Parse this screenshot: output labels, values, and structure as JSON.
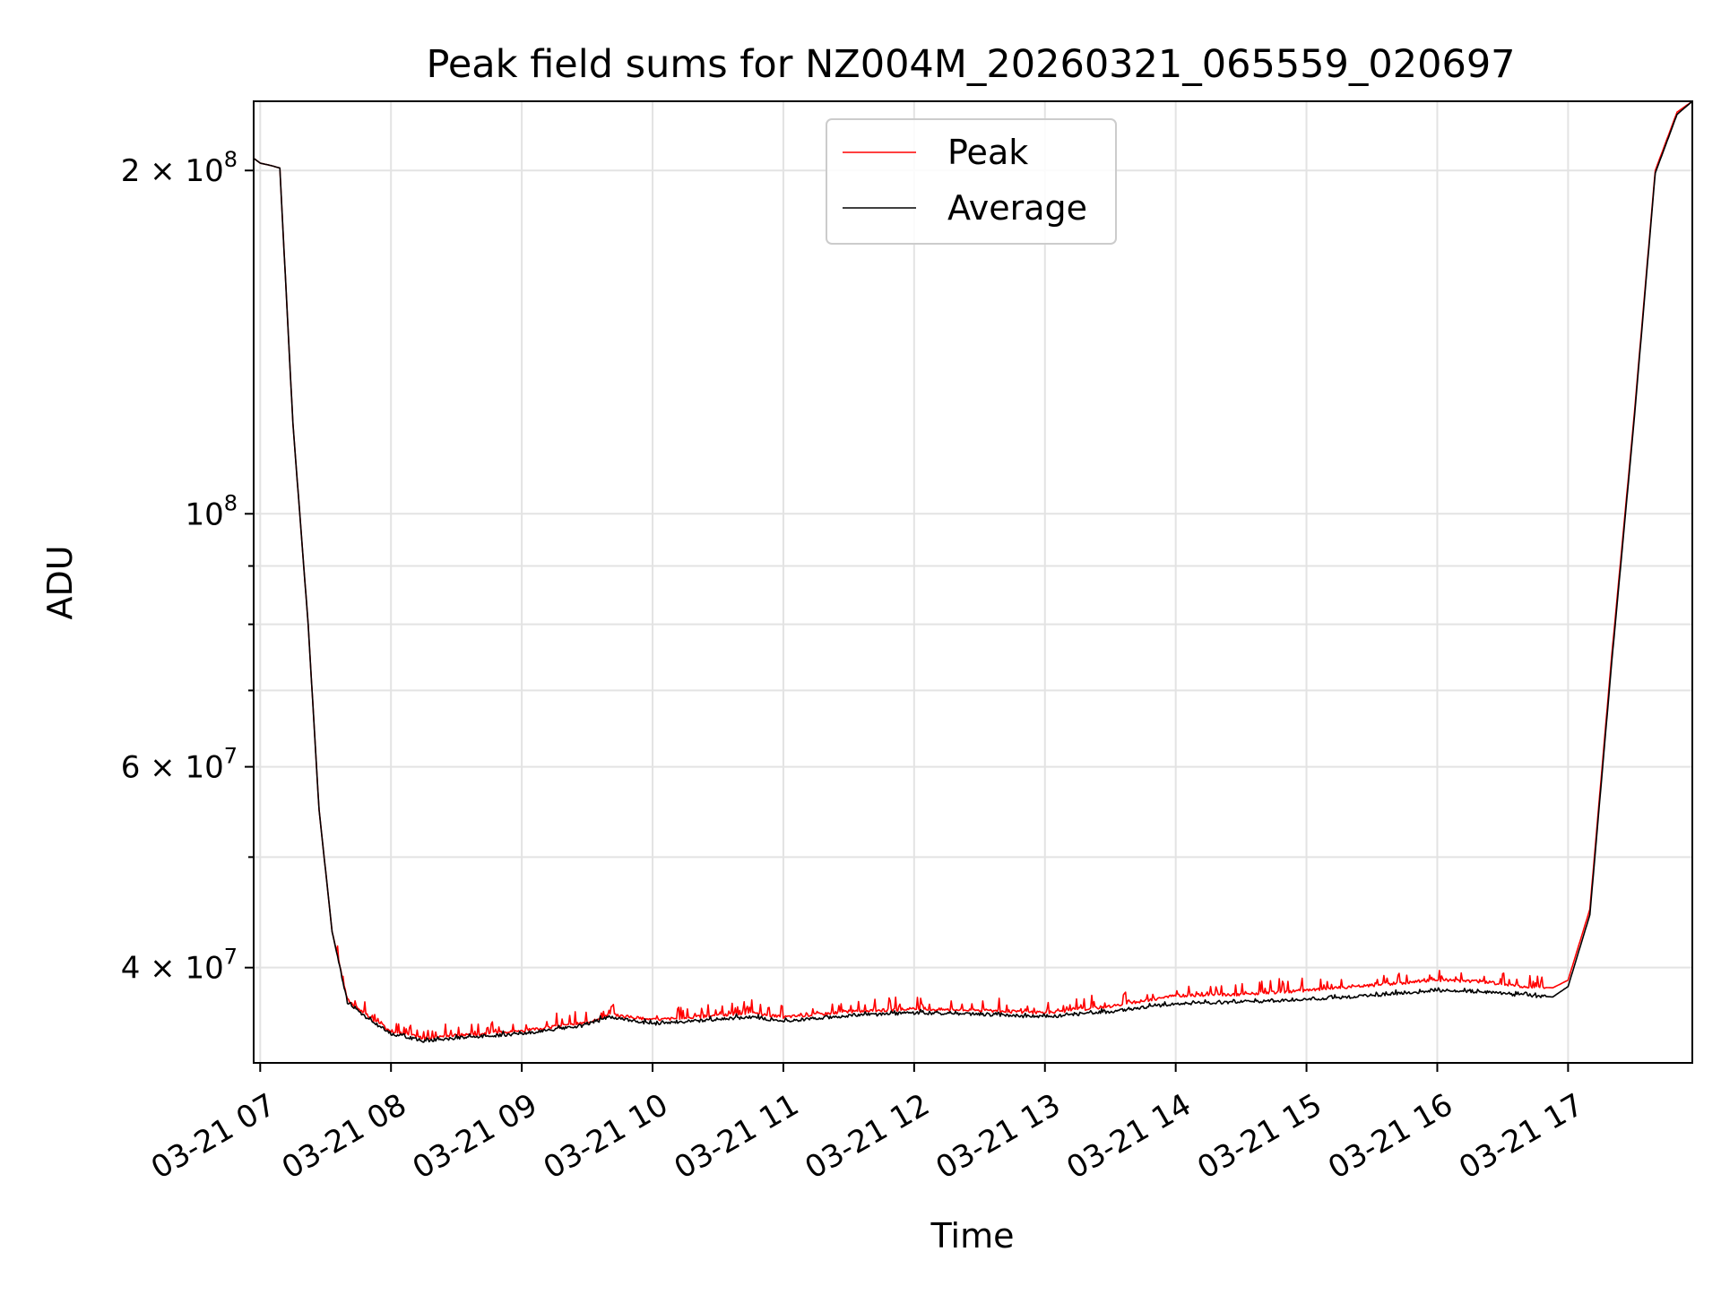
{
  "chart_data": {
    "type": "line",
    "title": "Peak field sums for NZ004M_20260321_065559_020697",
    "xlabel": "Time",
    "ylabel": "ADU",
    "y_scale": "log",
    "xlim": [
      "2026-03-21 06:57",
      "2026-03-21 17:57"
    ],
    "ylim": [
      33000000,
      230000000
    ],
    "grid": true,
    "legend_position": "top-center",
    "x_ticks": [
      {
        "time": "07:00",
        "label": "03-21 07"
      },
      {
        "time": "08:00",
        "label": "03-21 08"
      },
      {
        "time": "09:00",
        "label": "03-21 09"
      },
      {
        "time": "10:00",
        "label": "03-21 10"
      },
      {
        "time": "11:00",
        "label": "03-21 11"
      },
      {
        "time": "12:00",
        "label": "03-21 12"
      },
      {
        "time": "13:00",
        "label": "03-21 13"
      },
      {
        "time": "14:00",
        "label": "03-21 14"
      },
      {
        "time": "15:00",
        "label": "03-21 15"
      },
      {
        "time": "16:00",
        "label": "03-21 16"
      },
      {
        "time": "17:00",
        "label": "03-21 17"
      }
    ],
    "y_ticks": [
      {
        "value": 40000000,
        "mantissa": "4",
        "exponent": "7"
      },
      {
        "value": 60000000,
        "mantissa": "6",
        "exponent": "7"
      },
      {
        "value": 100000000,
        "mantissa": "",
        "exponent": "8"
      },
      {
        "value": 200000000,
        "mantissa": "2",
        "exponent": "8"
      }
    ],
    "y_minor_ticks": [
      50000000,
      70000000,
      80000000,
      90000000
    ],
    "tick_base": "10",
    "times_symbol": "×",
    "series": [
      {
        "name": "Peak",
        "color": "#ff0000",
        "spike_amplitude": 0.025,
        "points": [
          [
            "06:57",
            205000000
          ],
          [
            "07:00",
            203000000
          ],
          [
            "07:05",
            202000000
          ],
          [
            "07:09",
            201000000
          ],
          [
            "07:15",
            120000000
          ],
          [
            "07:22",
            80000000
          ],
          [
            "07:27",
            55000000
          ],
          [
            "07:33",
            43000000
          ],
          [
            "07:40",
            37500000
          ],
          [
            "07:50",
            36200000
          ],
          [
            "08:00",
            35200000
          ],
          [
            "08:15",
            34700000
          ],
          [
            "08:30",
            34900000
          ],
          [
            "09:00",
            35200000
          ],
          [
            "09:15",
            35500000
          ],
          [
            "09:30",
            35800000
          ],
          [
            "09:40",
            36400000
          ],
          [
            "10:00",
            36000000
          ],
          [
            "10:20",
            36200000
          ],
          [
            "10:45",
            36500000
          ],
          [
            "11:00",
            36200000
          ],
          [
            "11:30",
            36600000
          ],
          [
            "12:00",
            36800000
          ],
          [
            "12:30",
            36700000
          ],
          [
            "13:00",
            36500000
          ],
          [
            "13:30",
            37000000
          ],
          [
            "14:00",
            37800000
          ],
          [
            "14:30",
            37900000
          ],
          [
            "15:00",
            38200000
          ],
          [
            "15:30",
            38600000
          ],
          [
            "16:00",
            39000000
          ],
          [
            "16:20",
            38900000
          ],
          [
            "16:40",
            38500000
          ],
          [
            "16:53",
            38400000
          ],
          [
            "17:00",
            39000000
          ],
          [
            "17:10",
            45000000
          ],
          [
            "17:20",
            75000000
          ],
          [
            "17:30",
            120000000
          ],
          [
            "17:40",
            200000000
          ],
          [
            "17:50",
            225000000
          ],
          [
            "17:57",
            230000000
          ]
        ]
      },
      {
        "name": "Average",
        "color": "#000000",
        "spike_amplitude": 0.006,
        "points": [
          [
            "06:57",
            205000000
          ],
          [
            "07:00",
            203000000
          ],
          [
            "07:05",
            202000000
          ],
          [
            "07:09",
            201000000
          ],
          [
            "07:15",
            120000000
          ],
          [
            "07:22",
            80000000
          ],
          [
            "07:27",
            55000000
          ],
          [
            "07:33",
            43000000
          ],
          [
            "07:40",
            37300000
          ],
          [
            "07:50",
            36000000
          ],
          [
            "08:00",
            35000000
          ],
          [
            "08:15",
            34500000
          ],
          [
            "08:30",
            34700000
          ],
          [
            "09:00",
            35000000
          ],
          [
            "09:15",
            35300000
          ],
          [
            "09:30",
            35600000
          ],
          [
            "09:40",
            36200000
          ],
          [
            "10:00",
            35700000
          ],
          [
            "10:20",
            35900000
          ],
          [
            "10:45",
            36200000
          ],
          [
            "11:00",
            35900000
          ],
          [
            "11:30",
            36300000
          ],
          [
            "12:00",
            36500000
          ],
          [
            "12:30",
            36400000
          ],
          [
            "13:00",
            36200000
          ],
          [
            "13:30",
            36600000
          ],
          [
            "14:00",
            37200000
          ],
          [
            "14:30",
            37300000
          ],
          [
            "15:00",
            37500000
          ],
          [
            "15:30",
            37800000
          ],
          [
            "16:00",
            38200000
          ],
          [
            "16:20",
            38100000
          ],
          [
            "16:40",
            37800000
          ],
          [
            "16:53",
            37700000
          ],
          [
            "17:00",
            38500000
          ],
          [
            "17:10",
            44500000
          ],
          [
            "17:20",
            74000000
          ],
          [
            "17:30",
            119000000
          ],
          [
            "17:40",
            199000000
          ],
          [
            "17:50",
            224000000
          ],
          [
            "17:57",
            230000000
          ]
        ]
      }
    ]
  }
}
